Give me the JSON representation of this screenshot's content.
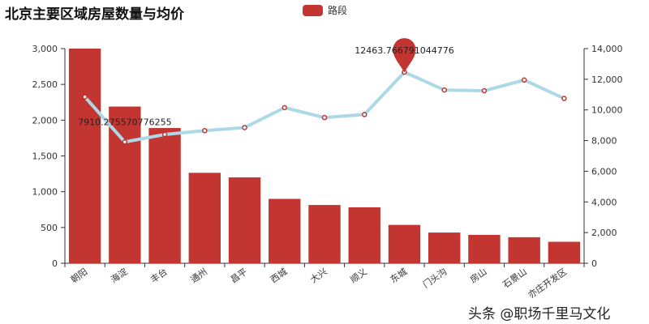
{
  "title": "北京主要区域房屋数量与均价",
  "legend": [
    "路段"
  ],
  "watermark": "头条 @职场千里马文化",
  "chart_data": {
    "type": "bar",
    "title": "北京主要区域房屋数量与均价",
    "categories": [
      "朝阳",
      "海淀",
      "丰台",
      "通州",
      "昌平",
      "西城",
      "大兴",
      "顺义",
      "东城",
      "门头沟",
      "房山",
      "石景山",
      "亦庄开发区"
    ],
    "series": [
      {
        "name": "路段",
        "type": "bar",
        "axis": "left",
        "color": "#c23531",
        "values": [
          3000,
          2190,
          1890,
          1264,
          1200,
          900,
          814,
          782,
          536,
          429,
          396,
          364,
          300
        ]
      },
      {
        "type": "line",
        "axis": "right",
        "color": "#add8e6",
        "values": [
          10850,
          7910.275570776255,
          8400,
          8650,
          8850,
          10150,
          9500,
          9700,
          12463.766791044776,
          11300,
          11250,
          11950,
          10750
        ]
      }
    ],
    "annotations": [
      "7910.275570776255",
      "12463.766791044776"
    ],
    "yleft": {
      "lim": [
        0,
        3000
      ],
      "ticks": [
        "0",
        "500",
        "1,000",
        "1,500",
        "2,000",
        "2,500",
        "3,000"
      ]
    },
    "yright": {
      "lim": [
        0,
        14000
      ],
      "ticks": [
        "0",
        "2,000",
        "4,000",
        "6,000",
        "8,000",
        "10,000",
        "12,000",
        "14,000"
      ]
    },
    "grid": false,
    "legend_position": "top-center"
  }
}
